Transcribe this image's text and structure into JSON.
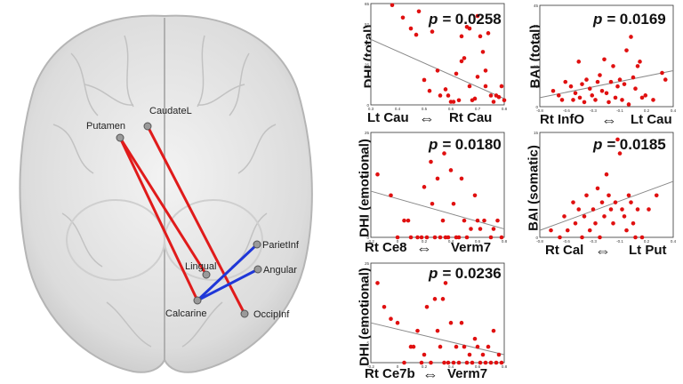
{
  "colors": {
    "positive_edge": "#e01b1b",
    "negative_edge": "#1f37d8",
    "point": "#e01010",
    "trend": "#888888"
  },
  "brain_nodes": [
    {
      "label": "Putamen"
    },
    {
      "label": "CaudateL"
    },
    {
      "label": "ParietInf"
    },
    {
      "label": "Angular"
    },
    {
      "label": "Lingual"
    },
    {
      "label": "Calcarine"
    },
    {
      "label": "OccipInf"
    }
  ],
  "brain_edges": [
    {
      "from": "Putamen",
      "to": "Calcarine",
      "color": "red"
    },
    {
      "from": "Putamen",
      "to": "Lingual",
      "color": "red"
    },
    {
      "from": "CaudateL",
      "to": "OccipInf",
      "color": "red"
    },
    {
      "from": "Calcarine",
      "to": "ParietInf",
      "color": "blue"
    },
    {
      "from": "Calcarine",
      "to": "Angular",
      "color": "blue"
    }
  ],
  "panels": {
    "p1": {
      "ylabel": "DHI (total)",
      "p": "0.0258",
      "left_region": "Lt Cau",
      "right_region": "Rt Cau"
    },
    "p2": {
      "ylabel": "BAI (total)",
      "p": "0.0169",
      "left_region": "Rt InfO",
      "right_region": "Lt Cau"
    },
    "p3": {
      "ylabel": "DHI (emotional)",
      "p": "0.0180",
      "left_region": "Rt Ce8",
      "right_region": "Verm7"
    },
    "p4": {
      "ylabel": "BAI (somatic)",
      "p": "0.0185",
      "left_region": "Rt Cal",
      "right_region": "Lt Put"
    },
    "p5": {
      "ylabel": "DHI (emotional)",
      "p": "0.0236",
      "left_region": "Rt Ce7b",
      "right_region": "Verm7"
    },
    "p_label": "p = "
  },
  "chart_data": [
    {
      "type": "scatter",
      "id": "p1",
      "ylabel": "DHI (total)",
      "xlim": [
        0.3,
        0.8
      ],
      "ylim": [
        0,
        65
      ],
      "points": [
        [
          0.38,
          64
        ],
        [
          0.42,
          56
        ],
        [
          0.45,
          49
        ],
        [
          0.47,
          45
        ],
        [
          0.48,
          60
        ],
        [
          0.5,
          16
        ],
        [
          0.52,
          9
        ],
        [
          0.53,
          47
        ],
        [
          0.55,
          22
        ],
        [
          0.56,
          6
        ],
        [
          0.58,
          10
        ],
        [
          0.59,
          6
        ],
        [
          0.6,
          2
        ],
        [
          0.61,
          2
        ],
        [
          0.62,
          20
        ],
        [
          0.63,
          3
        ],
        [
          0.64,
          28
        ],
        [
          0.64,
          44
        ],
        [
          0.65,
          30
        ],
        [
          0.66,
          50
        ],
        [
          0.67,
          49
        ],
        [
          0.67,
          12
        ],
        [
          0.68,
          3
        ],
        [
          0.69,
          4
        ],
        [
          0.7,
          18
        ],
        [
          0.7,
          57
        ],
        [
          0.71,
          44
        ],
        [
          0.72,
          34
        ],
        [
          0.73,
          22
        ],
        [
          0.73,
          12
        ],
        [
          0.74,
          46
        ],
        [
          0.75,
          6
        ],
        [
          0.76,
          2
        ],
        [
          0.77,
          6
        ],
        [
          0.78,
          5
        ],
        [
          0.79,
          12
        ],
        [
          0.8,
          3
        ]
      ],
      "trend": [
        [
          0.3,
          42
        ],
        [
          0.8,
          4
        ]
      ]
    },
    {
      "type": "scatter",
      "id": "p2",
      "ylabel": "BAI (total)",
      "xlim": [
        -0.8,
        0.4
      ],
      "ylim": [
        0,
        45
      ],
      "points": [
        [
          -0.68,
          7
        ],
        [
          -0.63,
          5
        ],
        [
          -0.6,
          3
        ],
        [
          -0.57,
          11
        ],
        [
          -0.52,
          9
        ],
        [
          -0.5,
          3
        ],
        [
          -0.48,
          6
        ],
        [
          -0.45,
          20
        ],
        [
          -0.44,
          4
        ],
        [
          -0.42,
          10
        ],
        [
          -0.4,
          2
        ],
        [
          -0.38,
          12
        ],
        [
          -0.35,
          8
        ],
        [
          -0.33,
          5
        ],
        [
          -0.3,
          3
        ],
        [
          -0.28,
          11
        ],
        [
          -0.26,
          14
        ],
        [
          -0.24,
          7
        ],
        [
          -0.22,
          21
        ],
        [
          -0.2,
          6
        ],
        [
          -0.18,
          2
        ],
        [
          -0.16,
          11
        ],
        [
          -0.14,
          18
        ],
        [
          -0.12,
          4
        ],
        [
          -0.1,
          9
        ],
        [
          -0.08,
          12
        ],
        [
          -0.06,
          3
        ],
        [
          -0.04,
          10
        ],
        [
          -0.02,
          25
        ],
        [
          0.0,
          1
        ],
        [
          0.02,
          31
        ],
        [
          0.04,
          13
        ],
        [
          0.06,
          8
        ],
        [
          0.08,
          18
        ],
        [
          0.1,
          20
        ],
        [
          0.12,
          4
        ],
        [
          0.15,
          5
        ],
        [
          0.22,
          3
        ],
        [
          0.3,
          15
        ],
        [
          0.33,
          12
        ]
      ],
      "trend": [
        [
          -0.8,
          4
        ],
        [
          0.4,
          16
        ]
      ]
    },
    {
      "type": "scatter",
      "id": "p3",
      "ylabel": "DHI (emotional)",
      "xlim": [
        -0.2,
        0.8
      ],
      "ylim": [
        0,
        25
      ],
      "points": [
        [
          -0.15,
          15
        ],
        [
          -0.05,
          10
        ],
        [
          0.0,
          0
        ],
        [
          0.05,
          4
        ],
        [
          0.08,
          4
        ],
        [
          0.1,
          0
        ],
        [
          0.15,
          0
        ],
        [
          0.18,
          0
        ],
        [
          0.2,
          12
        ],
        [
          0.22,
          0
        ],
        [
          0.25,
          18
        ],
        [
          0.26,
          8
        ],
        [
          0.28,
          0
        ],
        [
          0.3,
          14
        ],
        [
          0.32,
          0
        ],
        [
          0.34,
          4
        ],
        [
          0.35,
          20
        ],
        [
          0.36,
          0
        ],
        [
          0.38,
          0
        ],
        [
          0.4,
          16
        ],
        [
          0.42,
          8
        ],
        [
          0.44,
          0
        ],
        [
          0.46,
          0
        ],
        [
          0.48,
          14
        ],
        [
          0.5,
          4
        ],
        [
          0.52,
          0
        ],
        [
          0.55,
          2
        ],
        [
          0.58,
          10
        ],
        [
          0.6,
          4
        ],
        [
          0.62,
          2
        ],
        [
          0.65,
          4
        ],
        [
          0.7,
          0
        ],
        [
          0.72,
          2
        ],
        [
          0.75,
          4
        ],
        [
          0.78,
          0
        ]
      ],
      "trend": [
        [
          -0.2,
          11
        ],
        [
          0.8,
          2
        ]
      ]
    },
    {
      "type": "scatter",
      "id": "p4",
      "ylabel": "BAI (somatic)",
      "xlim": [
        -0.8,
        0.4
      ],
      "ylim": [
        0,
        15
      ],
      "points": [
        [
          -0.7,
          1
        ],
        [
          -0.62,
          0
        ],
        [
          -0.58,
          3
        ],
        [
          -0.55,
          1
        ],
        [
          -0.5,
          5
        ],
        [
          -0.48,
          2
        ],
        [
          -0.45,
          4
        ],
        [
          -0.42,
          0
        ],
        [
          -0.4,
          3
        ],
        [
          -0.38,
          6
        ],
        [
          -0.35,
          1
        ],
        [
          -0.32,
          4
        ],
        [
          -0.3,
          2
        ],
        [
          -0.28,
          7
        ],
        [
          -0.26,
          0
        ],
        [
          -0.24,
          5
        ],
        [
          -0.22,
          3
        ],
        [
          -0.2,
          9
        ],
        [
          -0.18,
          6
        ],
        [
          -0.16,
          4
        ],
        [
          -0.14,
          2
        ],
        [
          -0.12,
          5
        ],
        [
          -0.1,
          14
        ],
        [
          -0.08,
          12
        ],
        [
          -0.06,
          4
        ],
        [
          -0.04,
          3
        ],
        [
          -0.02,
          1
        ],
        [
          0.0,
          6
        ],
        [
          0.02,
          5
        ],
        [
          0.04,
          2
        ],
        [
          0.06,
          0
        ],
        [
          0.08,
          4
        ],
        [
          0.12,
          0
        ],
        [
          0.18,
          4
        ],
        [
          0.25,
          6
        ]
      ],
      "trend": [
        [
          -0.8,
          1
        ],
        [
          0.4,
          8
        ]
      ]
    },
    {
      "type": "scatter",
      "id": "p5",
      "ylabel": "DHI (emotional)",
      "xlim": [
        -0.2,
        0.8
      ],
      "ylim": [
        0,
        25
      ],
      "points": [
        [
          -0.15,
          20
        ],
        [
          -0.1,
          14
        ],
        [
          -0.05,
          11
        ],
        [
          0.0,
          10
        ],
        [
          0.05,
          0
        ],
        [
          0.1,
          4
        ],
        [
          0.12,
          4
        ],
        [
          0.15,
          8
        ],
        [
          0.18,
          0
        ],
        [
          0.2,
          2
        ],
        [
          0.22,
          14
        ],
        [
          0.25,
          0
        ],
        [
          0.28,
          16
        ],
        [
          0.3,
          8
        ],
        [
          0.32,
          4
        ],
        [
          0.34,
          16
        ],
        [
          0.35,
          0
        ],
        [
          0.36,
          20
        ],
        [
          0.38,
          0
        ],
        [
          0.4,
          10
        ],
        [
          0.42,
          0
        ],
        [
          0.44,
          4
        ],
        [
          0.46,
          0
        ],
        [
          0.48,
          10
        ],
        [
          0.5,
          4
        ],
        [
          0.52,
          0
        ],
        [
          0.54,
          2
        ],
        [
          0.56,
          0
        ],
        [
          0.58,
          6
        ],
        [
          0.6,
          4
        ],
        [
          0.62,
          0
        ],
        [
          0.64,
          2
        ],
        [
          0.66,
          0
        ],
        [
          0.68,
          4
        ],
        [
          0.7,
          0
        ],
        [
          0.72,
          8
        ],
        [
          0.74,
          0
        ],
        [
          0.76,
          2
        ],
        [
          0.78,
          0
        ]
      ],
      "trend": [
        [
          -0.2,
          10
        ],
        [
          0.8,
          2
        ]
      ]
    }
  ]
}
